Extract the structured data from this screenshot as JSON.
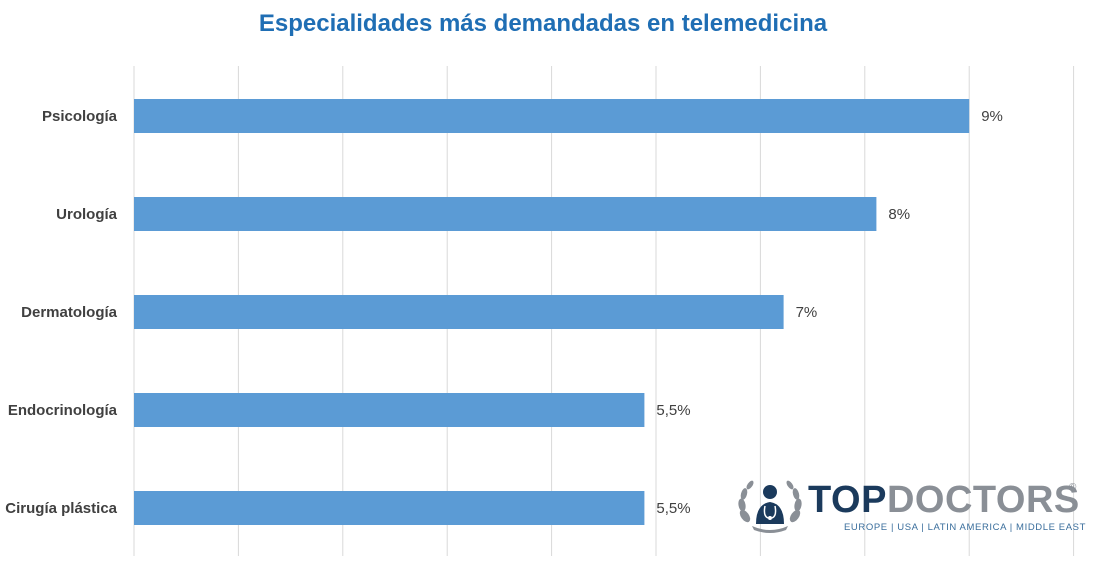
{
  "chart_data": {
    "type": "bar",
    "orientation": "horizontal",
    "title": "Especialidades más demandadas en telemedicina",
    "categories": [
      "Psicología",
      "Urología",
      "Dermatología",
      "Endocrinología",
      "Cirugía plástica"
    ],
    "values": [
      9,
      8,
      7,
      5.5,
      5.5
    ],
    "value_labels": [
      "9%",
      "8%",
      "7%",
      "5,5%",
      "5,5%"
    ],
    "xlim": [
      0,
      9
    ],
    "unit": "%",
    "grid": true,
    "legend": "none",
    "colors": {
      "bar": "#5B9BD5",
      "title": "#1F6EB4",
      "grid": "#D9D9D9",
      "text": "#404040"
    }
  },
  "logo": {
    "brand_top": "TOP",
    "brand_doctors": "DOCTORS",
    "registered": "®",
    "regions": "EUROPE  |  USA  |  LATIN AMERICA  |  MIDDLE EAST",
    "icon": "laurel-doctor-icon",
    "colors": {
      "top": "#1B3A5C",
      "doctors": "#8A8F96",
      "regions": "#3A6E9C"
    }
  }
}
